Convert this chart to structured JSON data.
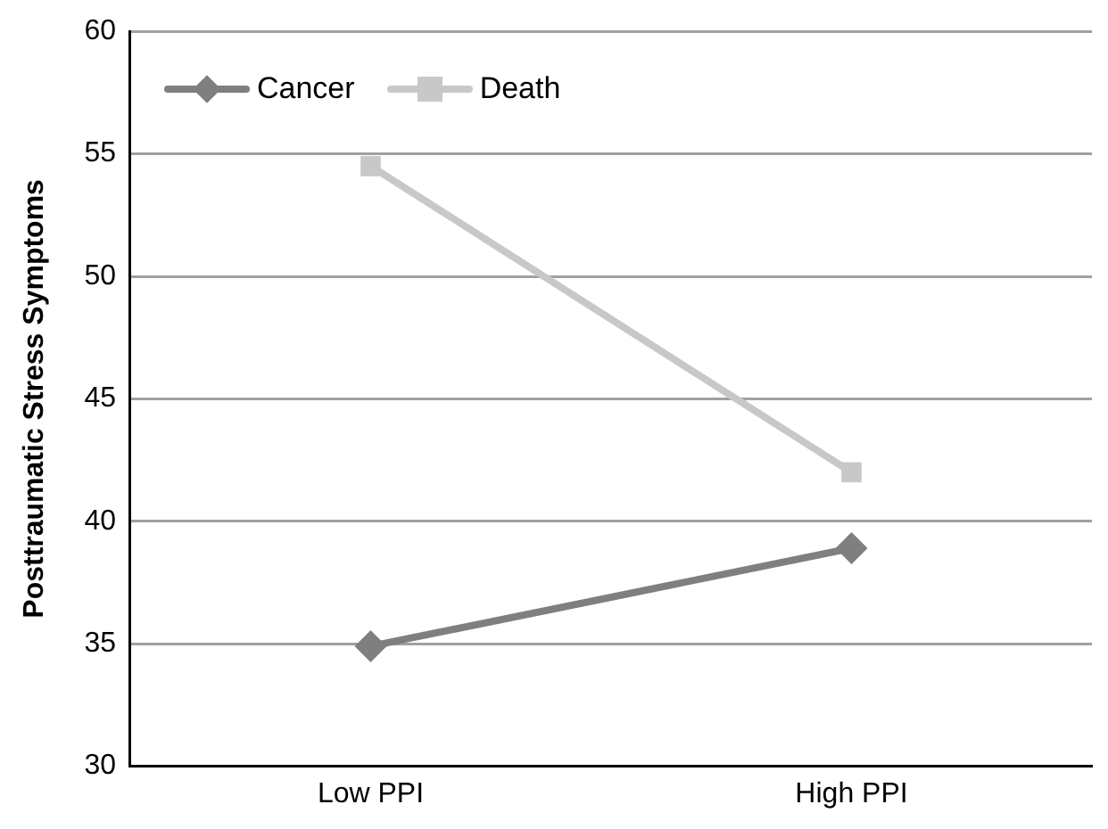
{
  "chart_data": {
    "type": "line",
    "ylabel": "Posttraumatic Stress Symptoms",
    "categories": [
      "Low PPI",
      "High PPI"
    ],
    "series": [
      {
        "name": "Cancer",
        "color": "#7f7f7f",
        "marker": "diamond",
        "values": [
          34.9,
          38.9
        ]
      },
      {
        "name": "Death",
        "color": "#c8c8c8",
        "marker": "square",
        "values": [
          54.5,
          42.0
        ]
      }
    ],
    "ylim": [
      30,
      60
    ],
    "yticks": [
      30,
      35,
      40,
      45,
      50,
      55,
      60
    ],
    "grid": "y",
    "legend": "top left",
    "line_style": "solid"
  }
}
